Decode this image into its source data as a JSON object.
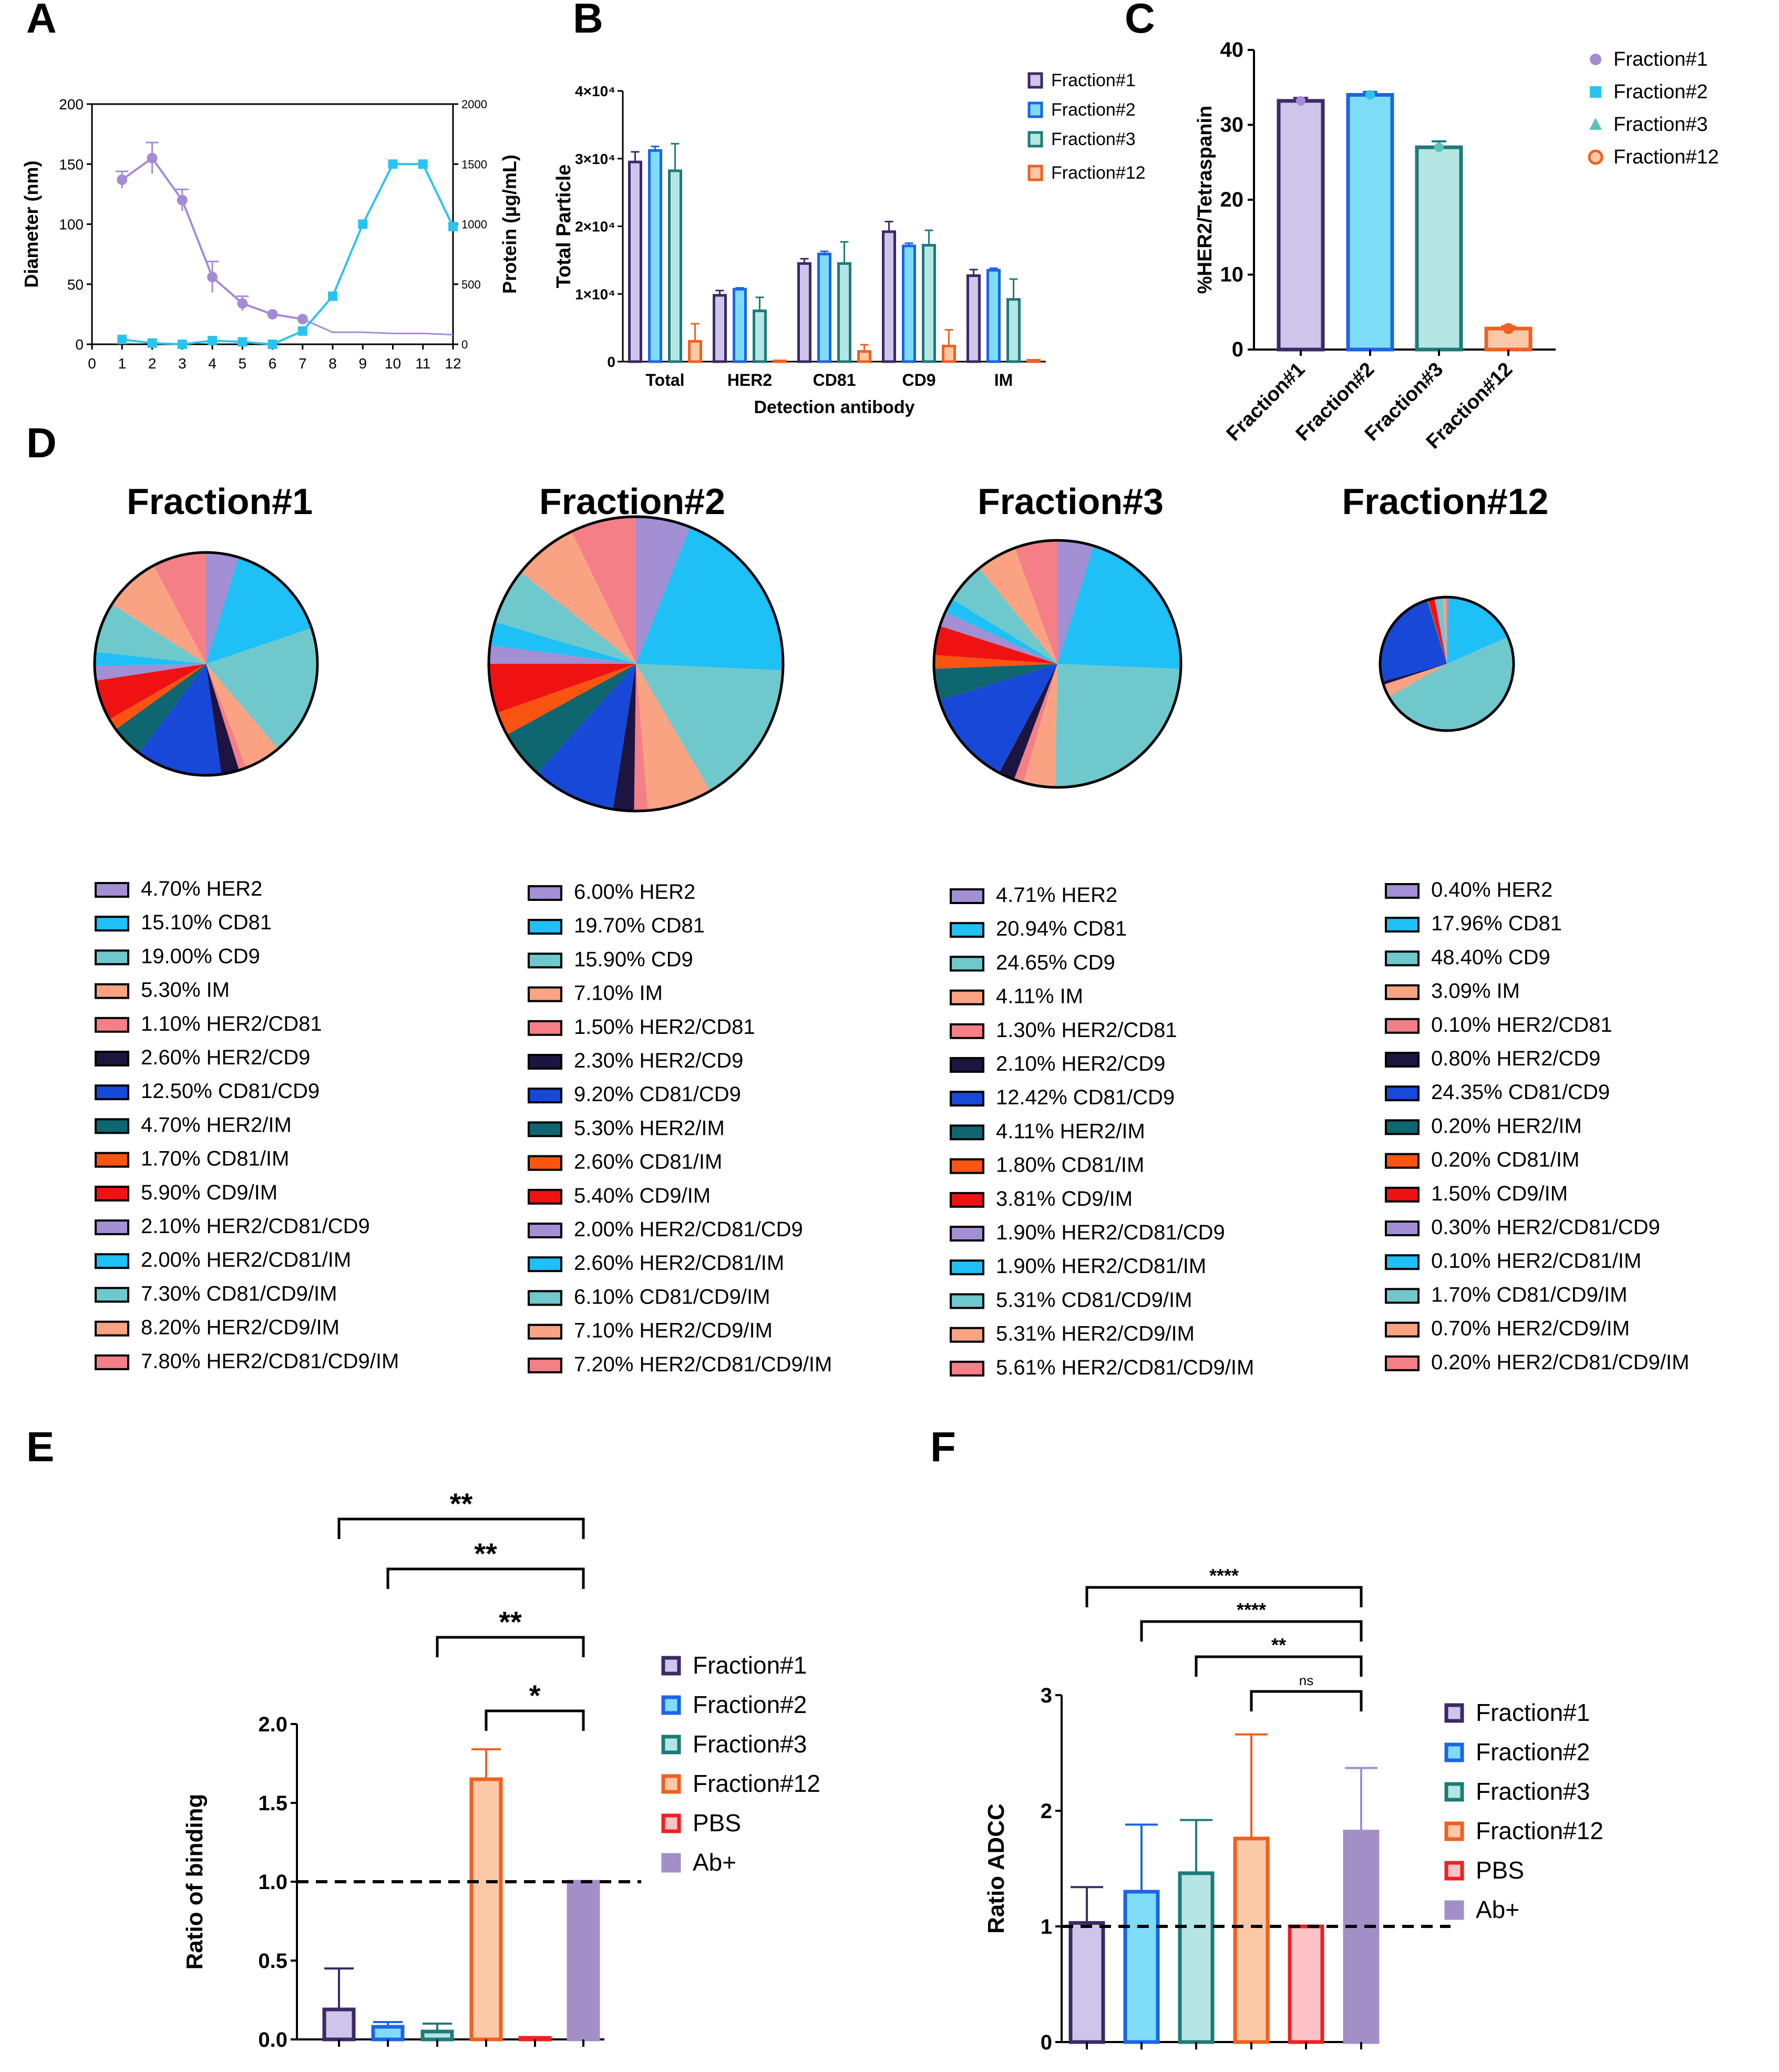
{
  "figure": {
    "panel_labels": [
      "A",
      "B",
      "C",
      "D",
      "E",
      "F"
    ],
    "colors": {
      "f1_dark": "#3b2a66",
      "f1_light": "#cfc4ea",
      "f2_dark": "#1c64e6",
      "f2_light": "#7fdcf7",
      "f3_dark": "#1f7a7a",
      "f3_light": "#b5e6e3",
      "f12_dark": "#f06020",
      "f12_light": "#fbc9a8",
      "pbs_dark": "#f02020",
      "pbs_light": "#fbc3c8",
      "abplus": "#a28fc8",
      "lineA_diam": "#a48bd4",
      "lineA_prot": "#29c3f0"
    }
  },
  "chart_data": [
    {
      "panel": "A",
      "type": "line",
      "x": [
        1,
        2,
        3,
        4,
        5,
        6,
        7,
        8,
        9,
        10,
        11,
        12
      ],
      "xticks": [
        "0",
        "1",
        "2",
        "3",
        "4",
        "5",
        "6",
        "7",
        "8",
        "9",
        "10",
        "11",
        "12"
      ],
      "xlim": [
        0,
        12
      ],
      "ylabel": "Diameter (nm)",
      "ylim": [
        0,
        200
      ],
      "yticks": [
        "0",
        "50",
        "100",
        "150",
        "200"
      ],
      "y2label": "Protein (µg/mL)",
      "y2lim": [
        0,
        2000
      ],
      "y2ticks": [
        "0",
        "500",
        "1000",
        "1500",
        "2000"
      ],
      "series": [
        {
          "name": "Diameter",
          "axis": "left",
          "x": [
            1,
            2,
            3,
            4,
            5,
            6,
            7
          ],
          "values": [
            137,
            155,
            120,
            56,
            34,
            25,
            21
          ],
          "errors": [
            7,
            13,
            9,
            13,
            6,
            0,
            0
          ],
          "tail_x": [
            7,
            8,
            9,
            10,
            11,
            12
          ],
          "tail_values": [
            21,
            10,
            10,
            9,
            9,
            8
          ]
        },
        {
          "name": "Protein",
          "axis": "right",
          "x": [
            1,
            2,
            3,
            4,
            5,
            6,
            7,
            8,
            9,
            10,
            11,
            12
          ],
          "values": [
            40,
            10,
            0,
            30,
            20,
            0,
            110,
            400,
            1000,
            1500,
            1500,
            980
          ]
        }
      ]
    },
    {
      "panel": "B",
      "type": "bar",
      "categories": [
        "Total",
        "HER2",
        "CD81",
        "CD9",
        "IM"
      ],
      "xlabel": "Detection antibody",
      "ylabel": "Total Particle",
      "ylim": [
        0,
        40000
      ],
      "yticks": [
        "0",
        "1×10⁴",
        "2×10⁴",
        "3×10⁴",
        "4×10⁴"
      ],
      "series": [
        {
          "name": "Fraction#1",
          "values": [
            29500,
            9800,
            14500,
            19200,
            12700
          ],
          "errors": [
            1500,
            700,
            700,
            1500,
            900
          ]
        },
        {
          "name": "Fraction#2",
          "values": [
            31200,
            10700,
            15900,
            17100,
            13500
          ],
          "errors": [
            600,
            200,
            400,
            400,
            300
          ]
        },
        {
          "name": "Fraction#3",
          "values": [
            28200,
            7500,
            14500,
            17200,
            9200
          ],
          "errors": [
            4000,
            2000,
            3200,
            2200,
            3000
          ]
        },
        {
          "name": "Fraction#12",
          "values": [
            3000,
            100,
            1500,
            2300,
            200
          ],
          "errors": [
            2600,
            0,
            1000,
            2400,
            0
          ]
        }
      ]
    },
    {
      "panel": "C",
      "type": "bar",
      "categories": [
        "Fraction#1",
        "Fraction#2",
        "Fraction#3",
        "Fraction#12"
      ],
      "ylabel": "%HER2/Tetraspanin",
      "ylim": [
        0,
        40
      ],
      "yticks": [
        "0",
        "10",
        "20",
        "30",
        "40"
      ],
      "values": [
        33.2,
        34.0,
        27.0,
        2.8
      ],
      "errors": [
        0.4,
        0.4,
        0.8,
        0.3
      ],
      "legend": [
        "Fraction#1",
        "Fraction#2",
        "Fraction#3",
        "Fraction#12"
      ]
    },
    {
      "panel": "D",
      "type": "pie",
      "categories": [
        "HER2",
        "CD81",
        "CD9",
        "IM",
        "HER2/CD81",
        "HER2/CD9",
        "CD81/CD9",
        "HER2/IM",
        "CD81/IM",
        "CD9/IM",
        "HER2/CD81/CD9",
        "HER2/CD81/IM",
        "CD81/CD9/IM",
        "HER2/CD9/IM",
        "HER2/CD81/CD9/IM"
      ],
      "slice_colors": [
        "#a28fd4",
        "#1ec0f5",
        "#6fc8cc",
        "#f9a383",
        "#f57f86",
        "#1e1440",
        "#1848d8",
        "#0e6670",
        "#fa5412",
        "#f01212",
        "#a28fd4",
        "#1ec0f5",
        "#6fc8cc",
        "#f9a383",
        "#f57f86"
      ],
      "pies": [
        {
          "title": "Fraction#1",
          "values": [
            4.7,
            15.1,
            19.0,
            5.3,
            1.1,
            2.6,
            12.5,
            4.7,
            1.7,
            5.9,
            2.1,
            2.0,
            7.3,
            8.2,
            7.8
          ],
          "labels": [
            "4.70% HER2",
            "15.10% CD81",
            "19.00% CD9",
            "5.30% IM",
            "1.10% HER2/CD81",
            "2.60% HER2/CD9",
            "12.50% CD81/CD9",
            "4.70% HER2/IM",
            "1.70% CD81/IM",
            "5.90% CD9/IM",
            "2.10% HER2/CD81/CD9",
            "2.00% HER2/CD81/IM",
            "7.30% CD81/CD9/IM",
            "8.20% HER2/CD9/IM",
            "7.80% HER2/CD81/CD9/IM"
          ]
        },
        {
          "title": "Fraction#2",
          "values": [
            6.0,
            19.7,
            15.9,
            7.1,
            1.5,
            2.3,
            9.2,
            5.3,
            2.6,
            5.4,
            2.0,
            2.6,
            6.1,
            7.1,
            7.2
          ],
          "labels": [
            "6.00% HER2",
            "19.70% CD81",
            "15.90% CD9",
            "7.10% IM",
            "1.50% HER2/CD81",
            "2.30% HER2/CD9",
            "9.20% CD81/CD9",
            "5.30% HER2/IM",
            "2.60% CD81/IM",
            "5.40% CD9/IM",
            "2.00% HER2/CD81/CD9",
            "2.60% HER2/CD81/IM",
            "6.10% CD81/CD9/IM",
            "7.10% HER2/CD9/IM",
            "7.20% HER2/CD81/CD9/IM"
          ]
        },
        {
          "title": "Fraction#3",
          "values": [
            4.71,
            20.94,
            24.65,
            4.11,
            1.3,
            2.1,
            12.42,
            4.11,
            1.8,
            3.81,
            1.9,
            1.9,
            5.31,
            5.31,
            5.61
          ],
          "labels": [
            "4.71% HER2",
            "20.94% CD81",
            "24.65% CD9",
            "4.11% IM",
            "1.30% HER2/CD81",
            "2.10% HER2/CD9",
            "12.42% CD81/CD9",
            "4.11% HER2/IM",
            "1.80% CD81/IM",
            "3.81% CD9/IM",
            "1.90% HER2/CD81/CD9",
            "1.90% HER2/CD81/IM",
            "5.31% CD81/CD9/IM",
            "5.31% HER2/CD9/IM",
            "5.61% HER2/CD81/CD9/IM"
          ]
        },
        {
          "title": "Fraction#12",
          "values": [
            0.4,
            17.96,
            48.4,
            3.09,
            0.1,
            0.8,
            24.35,
            0.2,
            0.2,
            1.5,
            0.3,
            0.1,
            1.7,
            0.7,
            0.2
          ],
          "labels": [
            "0.40% HER2",
            "17.96% CD81",
            "48.40% CD9",
            "3.09% IM",
            "0.10% HER2/CD81",
            "0.80% HER2/CD9",
            "24.35% CD81/CD9",
            "0.20% HER2/IM",
            "0.20% CD81/IM",
            "1.50% CD9/IM",
            "0.30% HER2/CD81/CD9",
            "0.10% HER2/CD81/IM",
            "1.70% CD81/CD9/IM",
            "0.70% HER2/CD9/IM",
            "0.20% HER2/CD81/CD9/IM"
          ]
        }
      ]
    },
    {
      "panel": "E",
      "type": "bar",
      "categories": [
        "Fraction#1",
        "Fraction#2",
        "Fraction#3",
        "Fraction#12",
        "PBS",
        "Ab+"
      ],
      "ylabel": "Ratio of binding",
      "ylim": [
        0,
        2.0
      ],
      "yticks": [
        "0.0",
        "0.5",
        "1.0",
        "1.5",
        "2.0"
      ],
      "values": [
        0.19,
        0.08,
        0.05,
        1.65,
        0.01,
        1.0
      ],
      "errors": [
        0.26,
        0.03,
        0.05,
        0.19,
        0,
        0
      ],
      "reference_line": 1.0,
      "significance": [
        {
          "from": "Fraction#1",
          "to": "Ab+",
          "label": "**"
        },
        {
          "from": "Fraction#2",
          "to": "Ab+",
          "label": "**"
        },
        {
          "from": "Fraction#3",
          "to": "Ab+",
          "label": "**"
        },
        {
          "from": "Fraction#12",
          "to": "Ab+",
          "label": "*"
        }
      ],
      "legend": [
        "Fraction#1",
        "Fraction#2",
        "Fraction#3",
        "Fraction#12",
        "PBS",
        "Ab+"
      ]
    },
    {
      "panel": "F",
      "type": "bar",
      "categories": [
        "Fraction#1",
        "Fraction#2",
        "Fraction#3",
        "Fraction#12",
        "PBS",
        "Ab+"
      ],
      "ylabel": "Ratio ADCC",
      "ylim": [
        0,
        3
      ],
      "yticks": [
        "0",
        "1",
        "2",
        "3"
      ],
      "values": [
        1.03,
        1.3,
        1.46,
        1.76,
        1.0,
        1.82
      ],
      "errors": [
        0.31,
        0.58,
        0.46,
        0.9,
        0,
        0.55
      ],
      "reference_line": 1.0,
      "significance": [
        {
          "from": "Fraction#1",
          "to": "Ab+",
          "label": "****"
        },
        {
          "from": "Fraction#2",
          "to": "Ab+",
          "label": "****"
        },
        {
          "from": "Fraction#3",
          "to": "Ab+",
          "label": "**"
        },
        {
          "from": "Fraction#12",
          "to": "Ab+",
          "label": "ns"
        }
      ],
      "legend": [
        "Fraction#1",
        "Fraction#2",
        "Fraction#3",
        "Fraction#12",
        "PBS",
        "Ab+"
      ]
    }
  ]
}
